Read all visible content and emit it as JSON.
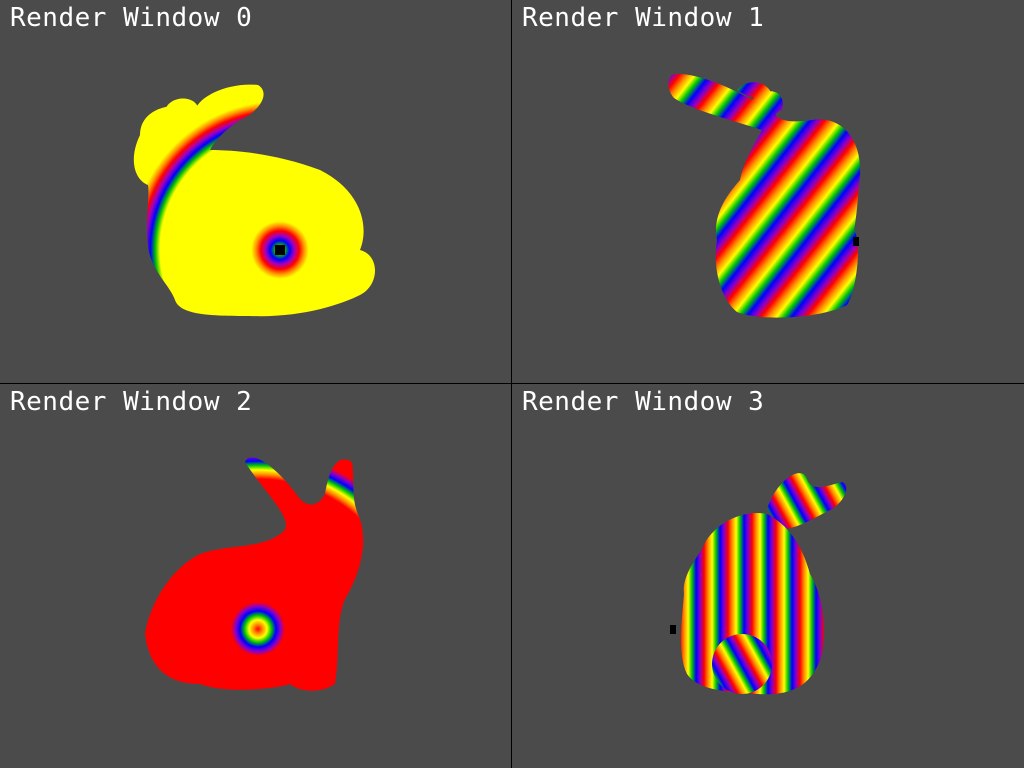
{
  "windows": [
    {
      "title": "Render Window 0"
    },
    {
      "title": "Render Window 1"
    },
    {
      "title": "Render Window 2"
    },
    {
      "title": "Render Window 3"
    }
  ],
  "colors": {
    "background": "#4b4b4b",
    "divider": "#000000",
    "title_text": "#ffffff",
    "stripe_palette": [
      "#ff0000",
      "#ff8c00",
      "#ffff00",
      "#00c800",
      "#0000ff",
      "#8a00c8"
    ]
  },
  "model": {
    "name": "bunny",
    "texture": "rainbow-concentric-stripes"
  }
}
